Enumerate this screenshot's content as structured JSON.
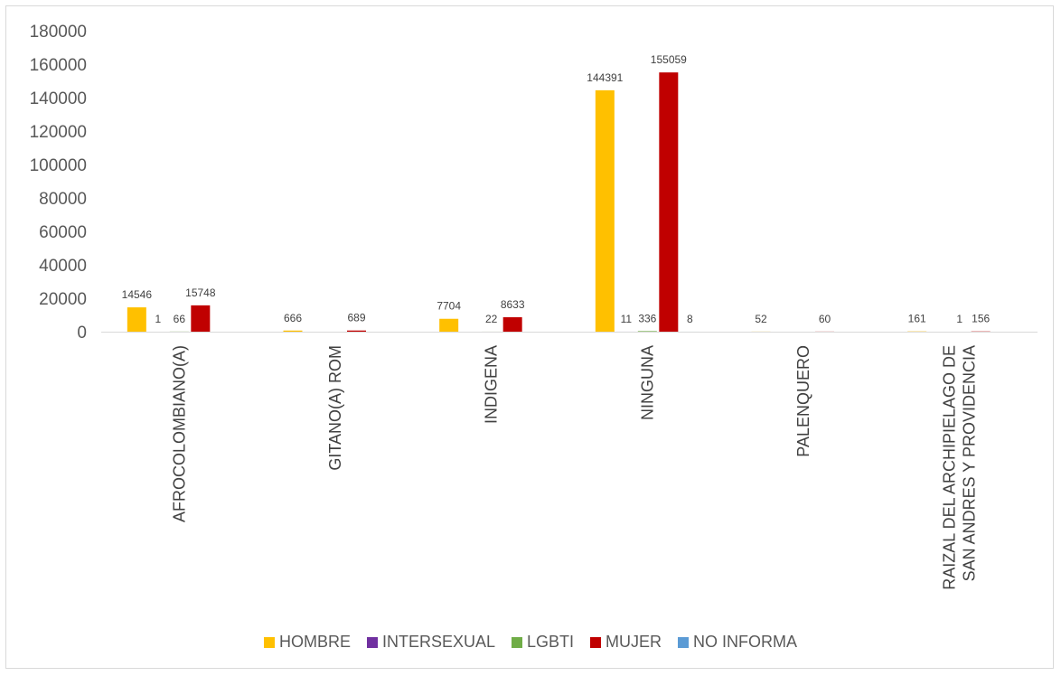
{
  "chart_data": {
    "type": "bar",
    "title": "",
    "xlabel": "",
    "ylabel": "",
    "ylim": [
      0,
      180000
    ],
    "yticks": [
      0,
      20000,
      40000,
      60000,
      80000,
      100000,
      120000,
      140000,
      160000,
      180000
    ],
    "categories": [
      [
        "AFROCOLOMBIANO(A)"
      ],
      [
        "GITANO(A) ROM"
      ],
      [
        "INDIGENA"
      ],
      [
        "NINGUNA"
      ],
      [
        "PALENQUERO"
      ],
      [
        "RAIZAL DEL ARCHIPIELAGO DE",
        "SAN ANDRES Y PROVIDENCIA"
      ]
    ],
    "series": [
      {
        "name": "HOMBRE",
        "color": "#FFC000",
        "values": [
          14546,
          666,
          7704,
          144391,
          52,
          161
        ]
      },
      {
        "name": "INTERSEXUAL",
        "color": "#7030A0",
        "values": [
          1,
          null,
          null,
          11,
          null,
          null
        ]
      },
      {
        "name": "LGBTI",
        "color": "#70AD47",
        "values": [
          66,
          null,
          22,
          336,
          null,
          1
        ]
      },
      {
        "name": "MUJER",
        "color": "#C00000",
        "values": [
          15748,
          689,
          8633,
          155059,
          60,
          156
        ]
      },
      {
        "name": "NO INFORMA",
        "color": "#5B9BD5",
        "values": [
          null,
          null,
          null,
          8,
          null,
          null
        ]
      }
    ],
    "grid": false,
    "legend": "bottom"
  }
}
